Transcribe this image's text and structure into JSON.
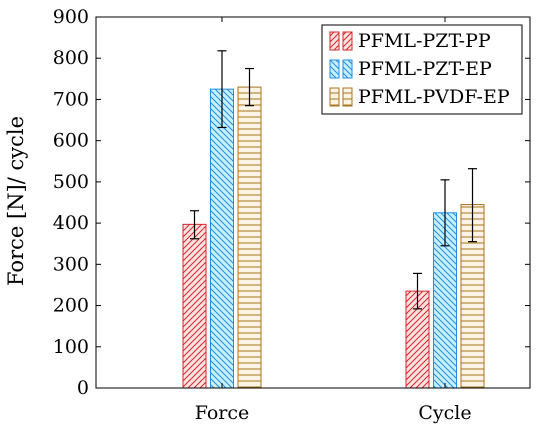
{
  "chart_data": {
    "type": "bar",
    "title": "",
    "xlabel": "",
    "ylabel": "Force [N]/ cycle",
    "ylim": [
      0,
      900
    ],
    "yticks": [
      0,
      100,
      200,
      300,
      400,
      500,
      600,
      700,
      800,
      900
    ],
    "categories": [
      "Force",
      "Cycle"
    ],
    "grid": false,
    "legend_position": "top-right",
    "series": [
      {
        "name": "PFML-PZT-PP",
        "values": [
          397,
          235
        ],
        "error": [
          [
            362,
            430
          ],
          [
            192,
            278
          ]
        ],
        "color": "#d62728",
        "fill_color": "#fde2e2",
        "pattern": "north-east-lines"
      },
      {
        "name": "PFML-PZT-EP",
        "values": [
          725,
          425
        ],
        "error": [
          [
            632,
            818
          ],
          [
            345,
            505
          ]
        ],
        "color": "#1f8ee6",
        "fill_color": "#c8f0fc",
        "pattern": "north-west-lines"
      },
      {
        "name": "PFML-PVDF-EP",
        "values": [
          730,
          445
        ],
        "error": [
          [
            685,
            775
          ],
          [
            355,
            532
          ]
        ],
        "color": "#a8761e",
        "fill_color": "#fbf3e4",
        "pattern": "horizontal-lines"
      }
    ]
  }
}
